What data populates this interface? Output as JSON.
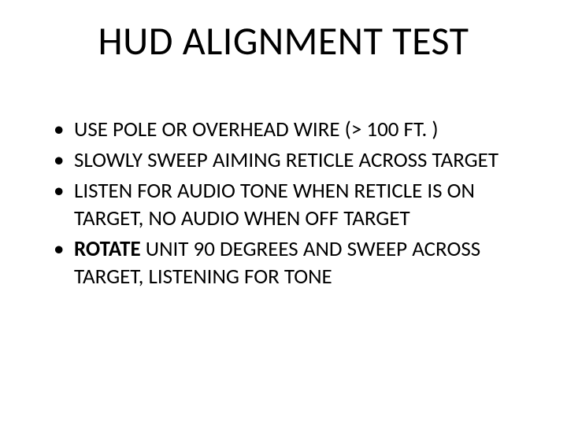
{
  "slide": {
    "title": "HUD ALIGNMENT TEST",
    "bullets": [
      {
        "text": "USE POLE OR OVERHEAD WIRE (> 100 FT. )"
      },
      {
        "text": "SLOWLY SWEEP AIMING RETICLE ACROSS TARGET"
      },
      {
        "text": "LISTEN FOR AUDIO TONE WHEN RETICLE IS ON TARGET, NO AUDIO WHEN OFF TARGET"
      },
      {
        "lead": "ROTATE",
        "rest": " UNIT 90 DEGREES AND SWEEP ACROSS TARGET, LISTENING FOR TONE"
      }
    ],
    "title_fontsize": 50,
    "body_fontsize": 27,
    "background_color": "#ffffff",
    "text_color": "#000000"
  }
}
